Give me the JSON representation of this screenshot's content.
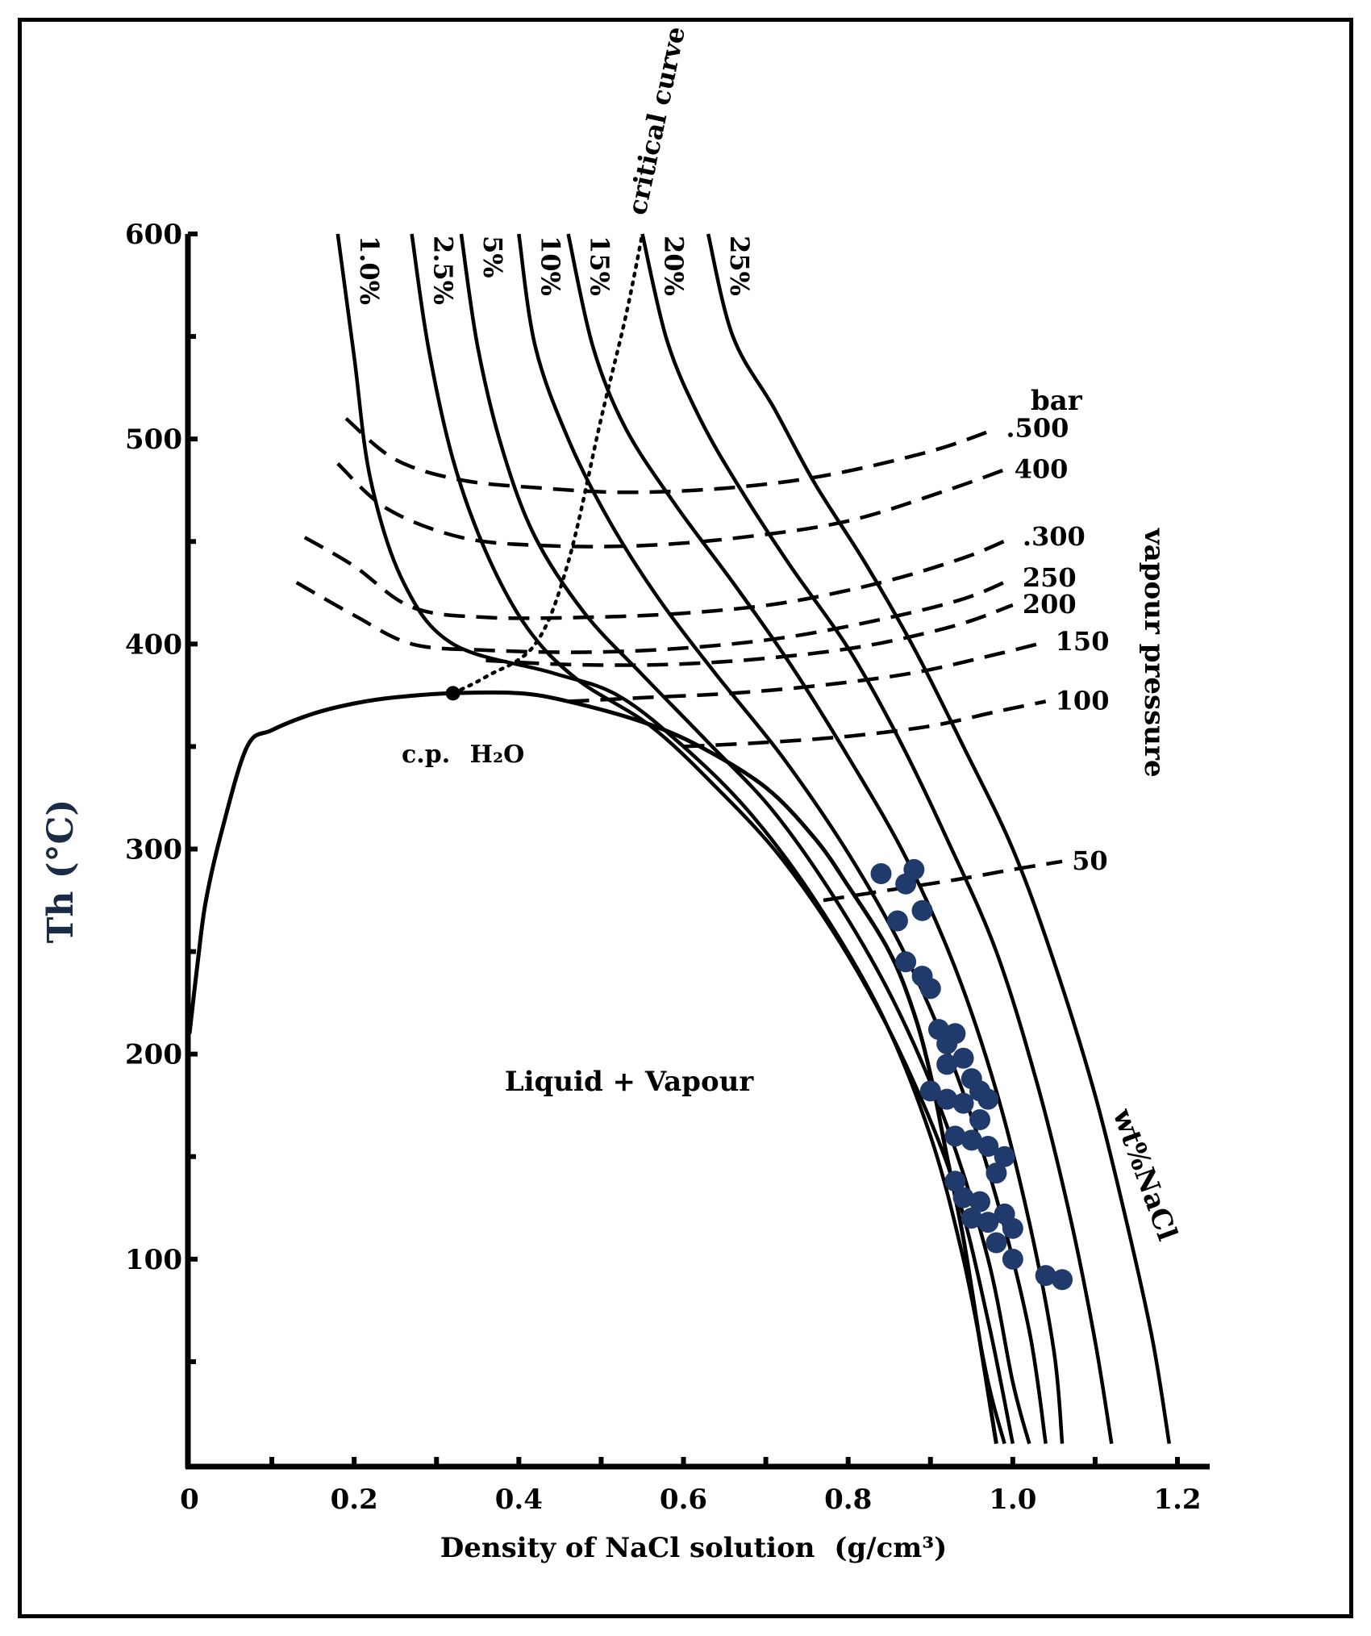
{
  "chart_data": {
    "type": "line",
    "title": "",
    "xlabel": "Density of NaCl solution",
    "xlabel_unit": "(g/cm³)",
    "ylabel": "Th (°C)",
    "xlim": [
      0,
      1.2
    ],
    "ylim": [
      0,
      600
    ],
    "x_ticks": [
      "0",
      "0.2",
      "0.4",
      "0.6",
      "0.8",
      "1.0",
      "1.2"
    ],
    "y_ticks": [
      "100",
      "200",
      "300",
      "400",
      "500",
      "600"
    ],
    "two_phase_boundary": {
      "name": "Liquid + Vapour boundary",
      "points": [
        [
          0,
          210
        ],
        [
          0.01,
          245
        ],
        [
          0.02,
          275
        ],
        [
          0.04,
          310
        ],
        [
          0.07,
          350
        ],
        [
          0.1,
          358
        ],
        [
          0.15,
          366
        ],
        [
          0.2,
          371
        ],
        [
          0.25,
          374
        ],
        [
          0.32,
          376
        ],
        [
          0.4,
          376
        ],
        [
          0.46,
          372
        ],
        [
          0.55,
          362
        ],
        [
          0.62,
          350
        ],
        [
          0.7,
          330
        ],
        [
          0.76,
          305
        ],
        [
          0.8,
          282
        ],
        [
          0.85,
          250
        ],
        [
          0.88,
          220
        ],
        [
          0.9,
          190
        ],
        [
          0.92,
          150
        ],
        [
          0.94,
          110
        ],
        [
          0.96,
          60
        ],
        [
          0.98,
          10
        ]
      ]
    },
    "isopleths": [
      {
        "label": "1.0%",
        "points": [
          [
            0.18,
            600
          ],
          [
            0.2,
            540
          ],
          [
            0.22,
            480
          ],
          [
            0.26,
            430
          ],
          [
            0.32,
            400
          ],
          [
            0.44,
            386
          ],
          [
            0.52,
            375
          ],
          [
            0.6,
            350
          ],
          [
            0.68,
            318
          ],
          [
            0.76,
            275
          ],
          [
            0.84,
            220
          ],
          [
            0.9,
            160
          ],
          [
            0.94,
            100
          ],
          [
            0.97,
            40
          ],
          [
            0.99,
            10
          ]
        ]
      },
      {
        "label": "2.5%",
        "points": [
          [
            0.27,
            600
          ],
          [
            0.29,
            545
          ],
          [
            0.32,
            490
          ],
          [
            0.36,
            445
          ],
          [
            0.41,
            408
          ],
          [
            0.47,
            383
          ],
          [
            0.56,
            360
          ],
          [
            0.64,
            330
          ],
          [
            0.72,
            295
          ],
          [
            0.8,
            248
          ],
          [
            0.87,
            195
          ],
          [
            0.93,
            135
          ],
          [
            0.97,
            70
          ],
          [
            1.0,
            10
          ]
        ]
      },
      {
        "label": "5%",
        "points": [
          [
            0.33,
            600
          ],
          [
            0.35,
            545
          ],
          [
            0.38,
            495
          ],
          [
            0.42,
            452
          ],
          [
            0.48,
            415
          ],
          [
            0.55,
            385
          ],
          [
            0.63,
            352
          ],
          [
            0.71,
            318
          ],
          [
            0.79,
            272
          ],
          [
            0.86,
            222
          ],
          [
            0.92,
            165
          ],
          [
            0.97,
            100
          ],
          [
            1.0,
            40
          ],
          [
            1.02,
            10
          ]
        ]
      },
      {
        "label": "10%",
        "points": [
          [
            0.4,
            600
          ],
          [
            0.42,
            545
          ],
          [
            0.46,
            500
          ],
          [
            0.51,
            460
          ],
          [
            0.57,
            422
          ],
          [
            0.64,
            385
          ],
          [
            0.72,
            345
          ],
          [
            0.8,
            298
          ],
          [
            0.87,
            248
          ],
          [
            0.93,
            192
          ],
          [
            0.98,
            130
          ],
          [
            1.02,
            65
          ],
          [
            1.04,
            10
          ]
        ]
      },
      {
        "label": "15%",
        "points": [
          [
            0.46,
            600
          ],
          [
            0.49,
            545
          ],
          [
            0.53,
            505
          ],
          [
            0.59,
            468
          ],
          [
            0.66,
            430
          ],
          [
            0.73,
            390
          ],
          [
            0.8,
            345
          ],
          [
            0.87,
            296
          ],
          [
            0.93,
            242
          ],
          [
            0.98,
            182
          ],
          [
            1.02,
            118
          ],
          [
            1.05,
            55
          ],
          [
            1.06,
            10
          ]
        ]
      },
      {
        "label": "20%",
        "points": [
          [
            0.55,
            600
          ],
          [
            0.58,
            548
          ],
          [
            0.62,
            510
          ],
          [
            0.67,
            475
          ],
          [
            0.73,
            438
          ],
          [
            0.8,
            398
          ],
          [
            0.86,
            355
          ],
          [
            0.92,
            305
          ],
          [
            0.98,
            250
          ],
          [
            1.03,
            185
          ],
          [
            1.07,
            120
          ],
          [
            1.1,
            60
          ],
          [
            1.12,
            10
          ]
        ]
      },
      {
        "label": "25%",
        "points": [
          [
            0.63,
            600
          ],
          [
            0.66,
            550
          ],
          [
            0.71,
            515
          ],
          [
            0.76,
            478
          ],
          [
            0.82,
            440
          ],
          [
            0.88,
            398
          ],
          [
            0.94,
            350
          ],
          [
            1.0,
            300
          ],
          [
            1.05,
            245
          ],
          [
            1.1,
            180
          ],
          [
            1.14,
            115
          ],
          [
            1.17,
            60
          ],
          [
            1.19,
            10
          ]
        ]
      }
    ],
    "isobars": [
      {
        "label": "500",
        "unit": "bar",
        "points": [
          [
            0.19,
            510
          ],
          [
            0.25,
            490
          ],
          [
            0.33,
            480
          ],
          [
            0.43,
            476
          ],
          [
            0.53,
            474
          ],
          [
            0.65,
            476
          ],
          [
            0.77,
            482
          ],
          [
            0.9,
            494
          ],
          [
            0.98,
            505
          ]
        ]
      },
      {
        "label": "400",
        "points": [
          [
            0.18,
            488
          ],
          [
            0.24,
            466
          ],
          [
            0.33,
            452
          ],
          [
            0.43,
            448
          ],
          [
            0.55,
            448
          ],
          [
            0.67,
            452
          ],
          [
            0.8,
            460
          ],
          [
            0.92,
            475
          ],
          [
            0.99,
            485
          ]
        ]
      },
      {
        "label": "300",
        "points": [
          [
            0.14,
            452
          ],
          [
            0.2,
            438
          ],
          [
            0.27,
            418
          ],
          [
            0.36,
            413
          ],
          [
            0.48,
            413
          ],
          [
            0.6,
            415
          ],
          [
            0.72,
            420
          ],
          [
            0.84,
            430
          ],
          [
            0.94,
            442
          ],
          [
            1.0,
            452
          ]
        ]
      },
      {
        "label": "250",
        "points": [
          [
            0.13,
            430
          ],
          [
            0.2,
            414
          ],
          [
            0.27,
            400
          ],
          [
            0.36,
            397
          ],
          [
            0.48,
            396
          ],
          [
            0.6,
            398
          ],
          [
            0.72,
            403
          ],
          [
            0.84,
            412
          ],
          [
            0.94,
            422
          ],
          [
            1.0,
            432
          ]
        ]
      },
      {
        "label": "200",
        "points": [
          [
            0.36,
            392
          ],
          [
            0.46,
            390
          ],
          [
            0.58,
            390
          ],
          [
            0.7,
            393
          ],
          [
            0.82,
            399
          ],
          [
            0.93,
            409
          ],
          [
            1.0,
            419
          ]
        ]
      },
      {
        "label": "150",
        "points": [
          [
            0.46,
            372
          ],
          [
            0.56,
            374
          ],
          [
            0.66,
            376
          ],
          [
            0.77,
            380
          ],
          [
            0.88,
            386
          ],
          [
            0.98,
            395
          ],
          [
            1.04,
            401
          ]
        ]
      },
      {
        "label": "100",
        "points": [
          [
            0.6,
            350
          ],
          [
            0.7,
            352
          ],
          [
            0.8,
            355
          ],
          [
            0.9,
            360
          ],
          [
            0.98,
            367
          ],
          [
            1.04,
            372
          ]
        ]
      },
      {
        "label": "50",
        "points": [
          [
            0.77,
            275
          ],
          [
            0.85,
            280
          ],
          [
            0.93,
            285
          ],
          [
            1.0,
            290
          ],
          [
            1.06,
            294
          ]
        ]
      }
    ],
    "critical_curve": {
      "label": "critical curve",
      "points": [
        [
          0.32,
          376
        ],
        [
          0.36,
          384
        ],
        [
          0.42,
          400
        ],
        [
          0.46,
          440
        ],
        [
          0.5,
          510
        ],
        [
          0.53,
          560
        ],
        [
          0.55,
          600
        ]
      ]
    },
    "critical_point": {
      "label": "c.p.",
      "formula": "H₂O",
      "x": 0.32,
      "y": 376
    },
    "inclusions": {
      "name": "fluid inclusions",
      "color": "#1f3a6b",
      "points": [
        [
          0.84,
          288
        ],
        [
          0.87,
          283
        ],
        [
          0.88,
          290
        ],
        [
          0.86,
          265
        ],
        [
          0.89,
          270
        ],
        [
          0.87,
          245
        ],
        [
          0.89,
          238
        ],
        [
          0.9,
          232
        ],
        [
          0.91,
          212
        ],
        [
          0.92,
          205
        ],
        [
          0.93,
          210
        ],
        [
          0.92,
          195
        ],
        [
          0.94,
          198
        ],
        [
          0.95,
          188
        ],
        [
          0.9,
          182
        ],
        [
          0.92,
          178
        ],
        [
          0.94,
          176
        ],
        [
          0.96,
          182
        ],
        [
          0.97,
          178
        ],
        [
          0.96,
          168
        ],
        [
          0.93,
          160
        ],
        [
          0.95,
          158
        ],
        [
          0.97,
          155
        ],
        [
          0.99,
          150
        ],
        [
          0.98,
          142
        ],
        [
          0.93,
          138
        ],
        [
          0.94,
          130
        ],
        [
          0.96,
          128
        ],
        [
          0.95,
          120
        ],
        [
          0.97,
          118
        ],
        [
          0.99,
          122
        ],
        [
          1.0,
          115
        ],
        [
          0.98,
          108
        ],
        [
          1.0,
          100
        ],
        [
          1.04,
          92
        ],
        [
          1.06,
          90
        ]
      ]
    },
    "annotations": {
      "region": "Liquid + Vapour",
      "pressure_unit": "bar",
      "vapour_pressure": "vapour pressure",
      "composition_unit": "wt%NaCl"
    }
  }
}
